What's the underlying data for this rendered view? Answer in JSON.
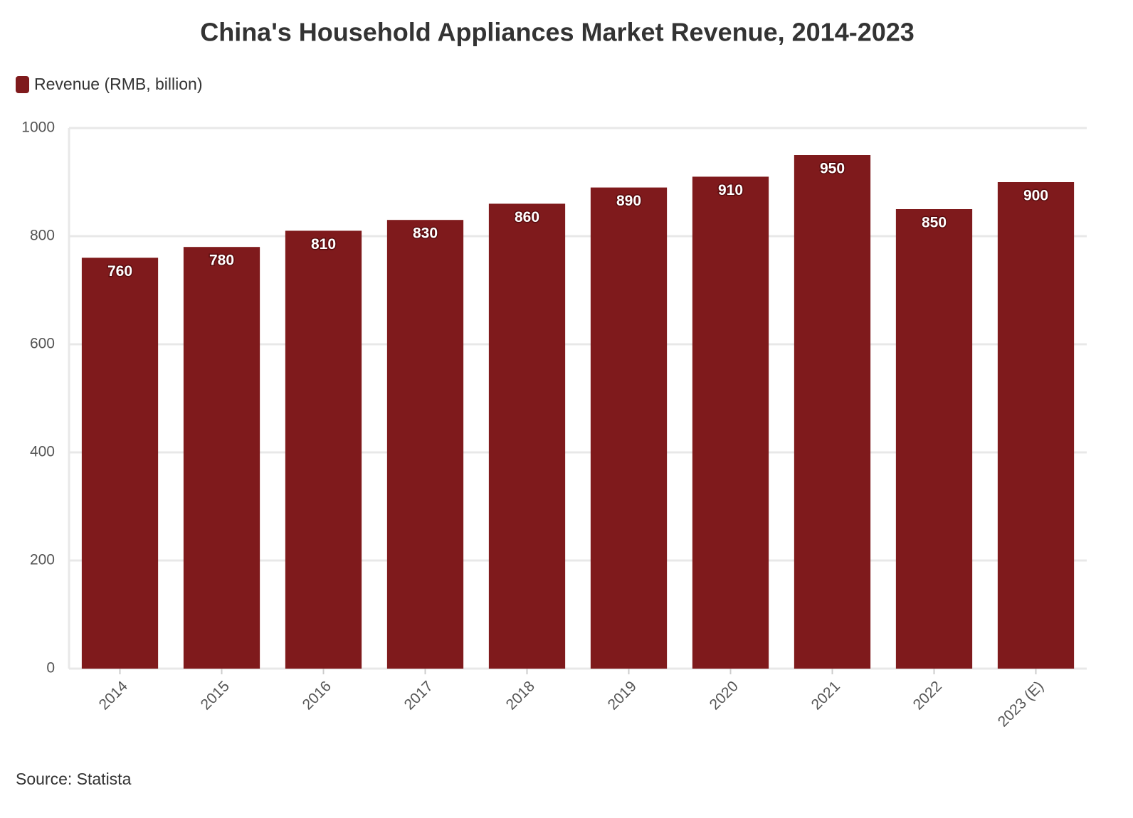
{
  "chart_data": {
    "type": "bar",
    "title": "China's Household Appliances Market Revenue, 2014-2023",
    "categories": [
      "2014",
      "2015",
      "2016",
      "2017",
      "2018",
      "2019",
      "2020",
      "2021",
      "2022",
      "2023 (E)"
    ],
    "series": [
      {
        "name": "Revenue (RMB, billion)",
        "color": "#7f1a1c",
        "values": [
          760,
          780,
          810,
          830,
          860,
          890,
          910,
          950,
          850,
          900
        ]
      }
    ],
    "ylim": [
      0,
      1000
    ],
    "yticks": [
      0,
      200,
      400,
      600,
      800,
      1000
    ],
    "grid": true,
    "legend": "top-left",
    "data_labels": true,
    "source": "Source: Statista"
  }
}
